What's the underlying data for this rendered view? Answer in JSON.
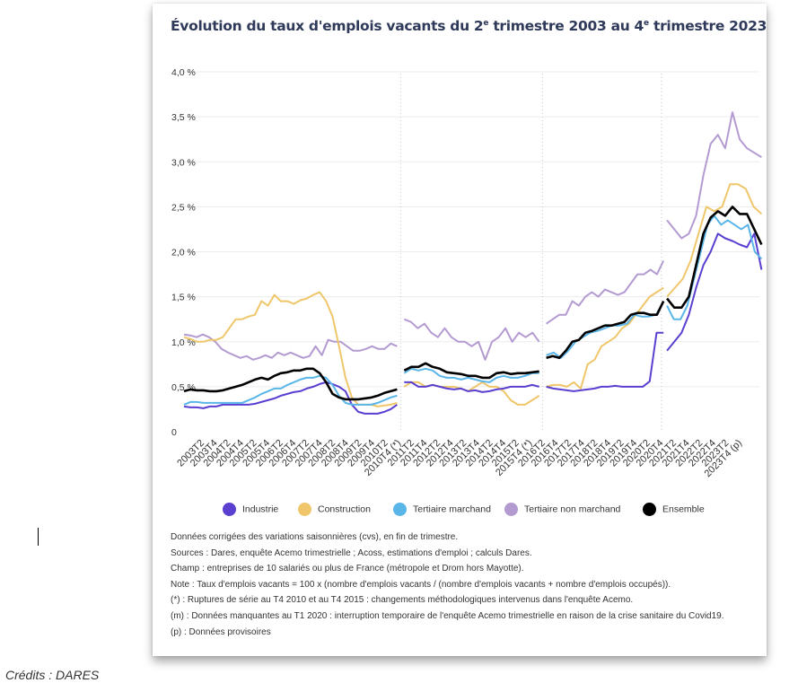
{
  "credit": "Crédits : DARES",
  "chart_data": {
    "type": "line",
    "title_main": "Évolution du taux d'emplois vacants du 2",
    "title_sup1": "e",
    "title_mid": " trimestre 2003 au 4",
    "title_sup2": "e",
    "title_end": " trimestre 2023",
    "ylim": [
      0,
      4.0
    ],
    "yticks": [
      {
        "v": 0,
        "label": "0"
      },
      {
        "v": 0.5,
        "label": "0,5 %"
      },
      {
        "v": 1.0,
        "label": "1,0 %"
      },
      {
        "v": 1.5,
        "label": "1,5 %"
      },
      {
        "v": 2.0,
        "label": "2,0 %"
      },
      {
        "v": 2.5,
        "label": "2,5 %"
      },
      {
        "v": 3.0,
        "label": "3,0 %"
      },
      {
        "v": 3.5,
        "label": "3,5 %"
      },
      {
        "v": 4.0,
        "label": "4,0 %"
      }
    ],
    "xlabels": [
      "2003T2",
      "2003T4",
      "2004T2",
      "2004T4",
      "2005T2",
      "2005T4",
      "2006T2",
      "2006T4",
      "2007T2",
      "2007T4",
      "2008T2",
      "2008T4",
      "2009T2",
      "2009T4",
      "2010T2",
      "2010T4 (*)",
      "2011T2",
      "2011T4",
      "2012T2",
      "2012T4",
      "2013T2",
      "2013T4",
      "2014T2",
      "2014T4",
      "2015T2",
      "2015T4 (*)",
      "2016T2",
      "2016T4",
      "2017T2",
      "2017T4",
      "2018T2",
      "2018T4",
      "2019T2",
      "2019T4",
      "2020T2",
      "2020T4",
      "2021T2",
      "2021T4",
      "2022T2",
      "2022T4",
      "2023T2",
      "2023T4 (p)"
    ],
    "breaks_after_index": [
      30,
      50,
      67
    ],
    "series": [
      {
        "name": "Industrie",
        "color": "#5b3fd1",
        "seg1": [
          0.28,
          0.27,
          0.27,
          0.26,
          0.28,
          0.28,
          0.3,
          0.3,
          0.3,
          0.3,
          0.3,
          0.31,
          0.33,
          0.35,
          0.37,
          0.4,
          0.42,
          0.44,
          0.45,
          0.48,
          0.5,
          0.53,
          0.55,
          0.53,
          0.5,
          0.45,
          0.3,
          0.22,
          0.2,
          0.2,
          0.2,
          0.22,
          0.25,
          0.3
        ],
        "seg2": [
          0.55,
          0.55,
          0.5,
          0.5,
          0.52,
          0.5,
          0.48,
          0.47,
          0.48,
          0.45,
          0.46,
          0.44,
          0.45,
          0.47,
          0.48,
          0.5,
          0.5,
          0.5,
          0.52,
          0.5
        ],
        "seg3": [
          0.5,
          0.48,
          0.47,
          0.46,
          0.45,
          0.46,
          0.47,
          0.48,
          0.5,
          0.5,
          0.51,
          0.5,
          0.5,
          0.5,
          0.5,
          0.56,
          1.1,
          1.1
        ],
        "seg4": [
          0.9,
          1.0,
          1.1,
          1.3,
          1.6,
          1.85,
          2.0,
          2.2,
          2.15,
          2.12,
          2.08,
          2.05,
          2.2,
          1.8
        ]
      },
      {
        "name": "Construction",
        "color": "#efc66a",
        "seg1": [
          1.05,
          1.03,
          1.0,
          1.0,
          1.02,
          1.02,
          1.05,
          1.15,
          1.25,
          1.25,
          1.28,
          1.3,
          1.45,
          1.4,
          1.52,
          1.45,
          1.45,
          1.42,
          1.46,
          1.48,
          1.52,
          1.55,
          1.45,
          1.28,
          0.95,
          0.6,
          0.38,
          0.3,
          0.3,
          0.3,
          0.28,
          0.29,
          0.3,
          0.32
        ],
        "seg2": [
          0.5,
          0.55,
          0.55,
          0.5,
          0.52,
          0.5,
          0.5,
          0.5,
          0.48,
          0.45,
          0.5,
          0.55,
          0.5,
          0.5,
          0.45,
          0.35,
          0.3,
          0.3,
          0.35,
          0.4
        ],
        "seg3": [
          0.5,
          0.52,
          0.52,
          0.5,
          0.55,
          0.48,
          0.75,
          0.8,
          0.95,
          1.0,
          1.05,
          1.15,
          1.2,
          1.3,
          1.4,
          1.5,
          1.55,
          1.6
        ],
        "seg4": [
          1.5,
          1.6,
          1.7,
          1.9,
          2.2,
          2.5,
          2.45,
          2.5,
          2.75,
          2.75,
          2.7,
          2.5,
          2.42
        ]
      },
      {
        "name": "Tertiaire marchand",
        "color": "#5ab6e8",
        "seg1": [
          0.3,
          0.33,
          0.33,
          0.32,
          0.32,
          0.32,
          0.32,
          0.32,
          0.32,
          0.32,
          0.35,
          0.38,
          0.42,
          0.45,
          0.48,
          0.48,
          0.52,
          0.55,
          0.58,
          0.6,
          0.6,
          0.62,
          0.6,
          0.52,
          0.4,
          0.32,
          0.3,
          0.3,
          0.3,
          0.3,
          0.32,
          0.35,
          0.38,
          0.4
        ],
        "seg2": [
          0.65,
          0.7,
          0.68,
          0.7,
          0.68,
          0.62,
          0.6,
          0.6,
          0.58,
          0.6,
          0.58,
          0.56,
          0.55,
          0.6,
          0.62,
          0.6,
          0.6,
          0.62,
          0.65,
          0.65
        ],
        "seg3": [
          0.85,
          0.88,
          0.82,
          0.9,
          1.0,
          1.05,
          1.1,
          1.12,
          1.15,
          1.18,
          1.18,
          1.2,
          1.3,
          1.28,
          1.28,
          1.3,
          1.45
        ],
        "seg4": [
          1.4,
          1.25,
          1.25,
          1.4,
          1.7,
          2.0,
          2.3,
          2.4,
          2.3,
          2.35,
          2.3,
          2.25,
          2.3,
          2.0,
          1.92
        ]
      },
      {
        "name": "Tertiaire non marchand",
        "color": "#b39ad1",
        "seg1": [
          1.08,
          1.07,
          1.05,
          1.08,
          1.05,
          1.0,
          0.92,
          0.88,
          0.85,
          0.82,
          0.84,
          0.8,
          0.82,
          0.85,
          0.82,
          0.88,
          0.85,
          0.88,
          0.85,
          0.82,
          0.84,
          0.95,
          0.85,
          1.02,
          1.0,
          1.0,
          0.95,
          0.9,
          0.9,
          0.92,
          0.95,
          0.92,
          0.92,
          0.98,
          0.95
        ],
        "seg2": [
          1.25,
          1.22,
          1.15,
          1.2,
          1.1,
          1.05,
          1.15,
          1.05,
          1.0,
          1.0,
          0.95,
          1.0,
          0.8,
          1.0,
          1.05,
          1.15,
          1.0,
          1.1,
          1.05,
          1.1,
          1.0
        ],
        "seg3": [
          1.2,
          1.25,
          1.3,
          1.3,
          1.45,
          1.4,
          1.5,
          1.55,
          1.5,
          1.58,
          1.55,
          1.52,
          1.55,
          1.65,
          1.75,
          1.75,
          1.8,
          1.75,
          1.9
        ],
        "seg4": [
          2.35,
          2.25,
          2.15,
          2.2,
          2.4,
          2.85,
          3.2,
          3.3,
          3.15,
          3.55,
          3.25,
          3.15,
          3.1,
          3.05
        ]
      },
      {
        "name": "Ensemble",
        "color": "#000000",
        "seg1": [
          0.45,
          0.47,
          0.46,
          0.46,
          0.45,
          0.45,
          0.46,
          0.48,
          0.5,
          0.52,
          0.55,
          0.58,
          0.6,
          0.58,
          0.62,
          0.65,
          0.66,
          0.68,
          0.68,
          0.7,
          0.7,
          0.65,
          0.55,
          0.42,
          0.38,
          0.36,
          0.36,
          0.36,
          0.37,
          0.38,
          0.4,
          0.43,
          0.45,
          0.47
        ],
        "seg2": [
          0.68,
          0.72,
          0.72,
          0.76,
          0.72,
          0.7,
          0.66,
          0.65,
          0.64,
          0.62,
          0.62,
          0.6,
          0.6,
          0.65,
          0.66,
          0.64,
          0.65,
          0.65,
          0.66,
          0.67
        ],
        "seg3": [
          0.82,
          0.84,
          0.82,
          0.9,
          1.0,
          1.02,
          1.1,
          1.12,
          1.15,
          1.18,
          1.18,
          1.2,
          1.22,
          1.3,
          1.32,
          1.32,
          1.3,
          1.3,
          1.45
        ],
        "seg4": [
          1.48,
          1.38,
          1.38,
          1.5,
          1.85,
          2.2,
          2.38,
          2.45,
          2.4,
          2.5,
          2.42,
          2.42,
          2.25,
          2.08
        ]
      }
    ]
  },
  "notes": [
    "Données corrigées des variations saisonnières (cvs), en fin de trimestre.",
    "Sources : Dares, enquête Acemo trimestrielle ; Acoss, estimations d'emploi ; calculs Dares.",
    "Champ : entreprises de 10 salariés ou plus de France (métropole et Drom hors Mayotte).",
    "Note : Taux d'emplois vacants = 100 x (nombre d'emplois vacants / (nombre d'emplois vacants + nombre d'emplois occupés)).",
    "(*) : Ruptures de série au T4 2010 et au T4 2015 : changements méthodologiques intervenus dans l'enquête Acemo.",
    "(m) : Données manquantes au T1 2020 : interruption temporaire de l'enquête Acemo trimestrielle en raison de la crise sanitaire du Covid19.",
    "(p) : Données provisoires"
  ]
}
